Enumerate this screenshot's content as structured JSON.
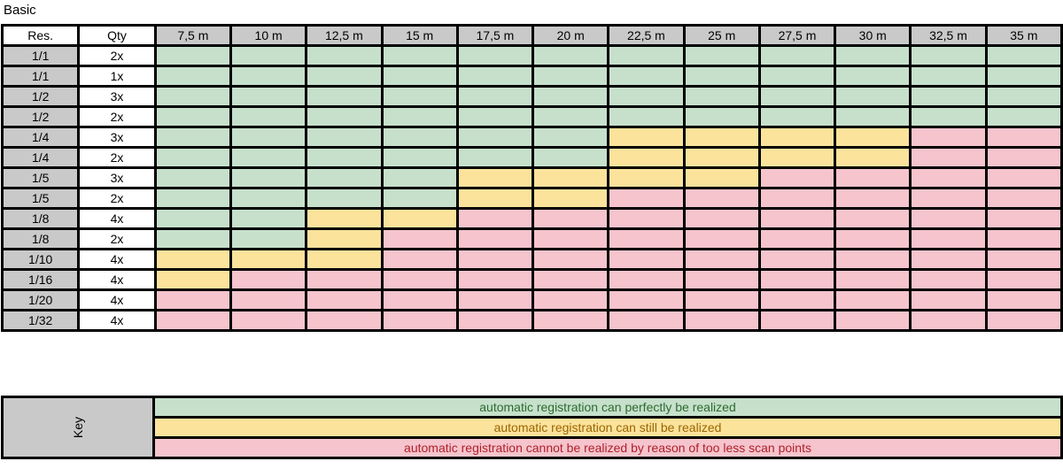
{
  "title": "Basic",
  "columns": {
    "res": "Res.",
    "qty": "Qty",
    "distances": [
      "7,5 m",
      "10 m",
      "12,5 m",
      "15 m",
      "17,5 m",
      "20 m",
      "22,5 m",
      "25 m",
      "27,5 m",
      "30 m",
      "32,5 m",
      "35 m"
    ]
  },
  "rows": [
    {
      "res": "1/1",
      "qty": "2x",
      "cells": [
        "g",
        "g",
        "g",
        "g",
        "g",
        "g",
        "g",
        "g",
        "g",
        "g",
        "g",
        "g"
      ]
    },
    {
      "res": "1/1",
      "qty": "1x",
      "cells": [
        "g",
        "g",
        "g",
        "g",
        "g",
        "g",
        "g",
        "g",
        "g",
        "g",
        "g",
        "g"
      ]
    },
    {
      "res": "1/2",
      "qty": "3x",
      "cells": [
        "g",
        "g",
        "g",
        "g",
        "g",
        "g",
        "g",
        "g",
        "g",
        "g",
        "g",
        "g"
      ]
    },
    {
      "res": "1/2",
      "qty": "2x",
      "cells": [
        "g",
        "g",
        "g",
        "g",
        "g",
        "g",
        "g",
        "g",
        "g",
        "g",
        "g",
        "g"
      ]
    },
    {
      "res": "1/4",
      "qty": "3x",
      "cells": [
        "g",
        "g",
        "g",
        "g",
        "g",
        "g",
        "y",
        "y",
        "y",
        "y",
        "r",
        "r"
      ]
    },
    {
      "res": "1/4",
      "qty": "2x",
      "cells": [
        "g",
        "g",
        "g",
        "g",
        "g",
        "g",
        "y",
        "y",
        "y",
        "y",
        "r",
        "r"
      ]
    },
    {
      "res": "1/5",
      "qty": "3x",
      "cells": [
        "g",
        "g",
        "g",
        "g",
        "y",
        "y",
        "y",
        "y",
        "r",
        "r",
        "r",
        "r"
      ]
    },
    {
      "res": "1/5",
      "qty": "2x",
      "cells": [
        "g",
        "g",
        "g",
        "g",
        "y",
        "y",
        "r",
        "r",
        "r",
        "r",
        "r",
        "r"
      ]
    },
    {
      "res": "1/8",
      "qty": "4x",
      "cells": [
        "g",
        "g",
        "y",
        "y",
        "r",
        "r",
        "r",
        "r",
        "r",
        "r",
        "r",
        "r"
      ]
    },
    {
      "res": "1/8",
      "qty": "2x",
      "cells": [
        "g",
        "g",
        "y",
        "r",
        "r",
        "r",
        "r",
        "r",
        "r",
        "r",
        "r",
        "r"
      ]
    },
    {
      "res": "1/10",
      "qty": "4x",
      "cells": [
        "y",
        "y",
        "y",
        "r",
        "r",
        "r",
        "r",
        "r",
        "r",
        "r",
        "r",
        "r"
      ]
    },
    {
      "res": "1/16",
      "qty": "4x",
      "cells": [
        "y",
        "r",
        "r",
        "r",
        "r",
        "r",
        "r",
        "r",
        "r",
        "r",
        "r",
        "r"
      ]
    },
    {
      "res": "1/20",
      "qty": "4x",
      "cells": [
        "r",
        "r",
        "r",
        "r",
        "r",
        "r",
        "r",
        "r",
        "r",
        "r",
        "r",
        "r"
      ]
    },
    {
      "res": "1/32",
      "qty": "4x",
      "cells": [
        "r",
        "r",
        "r",
        "r",
        "r",
        "r",
        "r",
        "r",
        "r",
        "r",
        "r",
        "r"
      ]
    }
  ],
  "colors": {
    "g": "#c6e0cc",
    "y": "#fbe39c",
    "r": "#f5c4cd",
    "header_gray": "#c9c9c9"
  },
  "key": {
    "label": "Key",
    "entries": [
      {
        "status": "g",
        "text": "automatic registration can perfectly be realized"
      },
      {
        "status": "y",
        "text": "automatic registration can still be realized"
      },
      {
        "status": "r",
        "text": "automatic registration cannot be realized by reason of too less scan points"
      }
    ]
  }
}
